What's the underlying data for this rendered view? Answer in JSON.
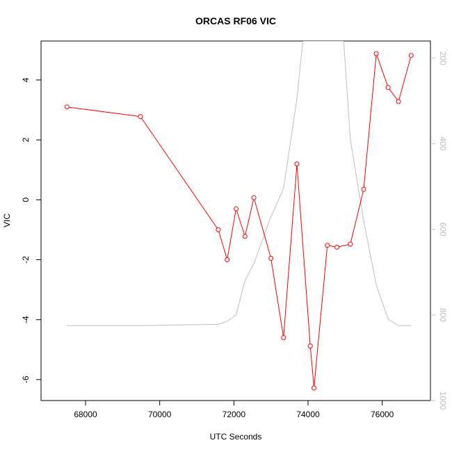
{
  "chart_data": {
    "type": "line",
    "title": "ORCAS RF06 VIC",
    "xlabel": "UTC Seconds",
    "ylabel": "VIC",
    "xlim": [
      66800,
      77300
    ],
    "ylim": [
      -6.7,
      5.3
    ],
    "x_ticks": [
      "68000",
      "70000",
      "72000",
      "74000",
      "76000"
    ],
    "y_ticks": [
      "-6",
      "-4",
      "-2",
      "0",
      "2",
      "4"
    ],
    "right_axis": {
      "ylim": [
        1000,
        160
      ],
      "reversed": true,
      "ticks": [
        "200",
        "400",
        "600",
        "800",
        "1000"
      ],
      "color": "#bebebe"
    },
    "series": [
      {
        "color": "#ff0000",
        "marker": "open-circle",
        "x": [
          67500,
          69480,
          71580,
          71820,
          72060,
          72300,
          72540,
          73000,
          73340,
          73700,
          74060,
          74160,
          74520,
          74780,
          75140,
          75500,
          75840,
          76160,
          76440,
          76780
        ],
        "y": [
          3.1,
          2.78,
          -1.0,
          -2.0,
          -0.3,
          -1.22,
          0.07,
          -1.95,
          -4.6,
          1.2,
          -4.88,
          -6.28,
          -1.52,
          -1.58,
          -1.48,
          0.35,
          4.88,
          3.75,
          3.28,
          4.82
        ]
      },
      {
        "color": "#bebebe",
        "marker": "none",
        "axis": "right",
        "x": [
          67500,
          69480,
          71580,
          71820,
          72060,
          72300,
          72540,
          73000,
          73340,
          73700,
          73860,
          74960,
          75140,
          75500,
          75840,
          76160,
          76440,
          76780
        ],
        "y": [
          825,
          825,
          822,
          815,
          800,
          720,
          680,
          570,
          505,
          295,
          160,
          160,
          390,
          580,
          730,
          810,
          825,
          825
        ]
      }
    ]
  }
}
